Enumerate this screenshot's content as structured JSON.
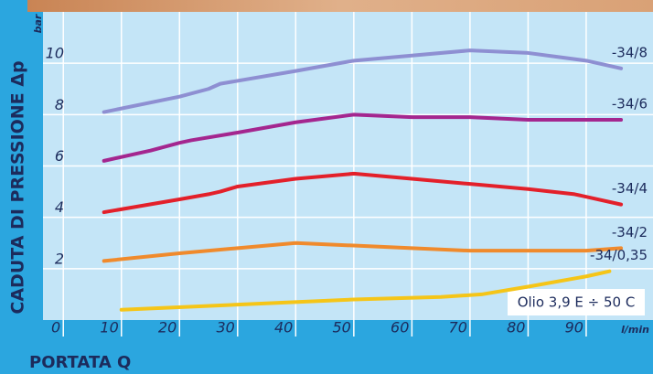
{
  "chart_data": {
    "type": "line",
    "y_label": "CADUTA DI PRESSIONE Δp",
    "y_unit": "bar",
    "x_label": "PORTATA Q",
    "x_unit": "l/min",
    "annotation": "Olio 3,9 E ÷ 50 C",
    "xlim": [
      -3.5,
      101.5
    ],
    "ylim": [
      0,
      12
    ],
    "xticks": [
      0,
      10,
      20,
      30,
      40,
      50,
      60,
      70,
      80,
      90
    ],
    "yticks": [
      2,
      4,
      6,
      8,
      10
    ],
    "grid": true,
    "series": [
      {
        "name": "-34/8",
        "color": "#8e8fd2",
        "x": [
          7,
          20,
          25,
          27,
          40,
          50,
          60,
          70,
          80,
          90,
          96
        ],
        "values": [
          8.1,
          8.7,
          9.0,
          9.2,
          9.7,
          10.1,
          10.3,
          10.5,
          10.4,
          10.1,
          9.8
        ]
      },
      {
        "name": "-34/6",
        "color": "#a4268f",
        "x": [
          7,
          15,
          20,
          22,
          30,
          40,
          50,
          60,
          70,
          80,
          90,
          96
        ],
        "values": [
          6.2,
          6.6,
          6.9,
          7.0,
          7.3,
          7.7,
          8.0,
          7.9,
          7.9,
          7.8,
          7.8,
          7.8
        ]
      },
      {
        "name": "-34/4",
        "color": "#e3202a",
        "x": [
          7,
          20,
          25,
          27,
          30,
          40,
          50,
          60,
          70,
          80,
          88,
          96
        ],
        "values": [
          4.2,
          4.7,
          4.9,
          5.0,
          5.2,
          5.5,
          5.7,
          5.5,
          5.3,
          5.1,
          4.9,
          4.5
        ]
      },
      {
        "name": "-34/2",
        "color": "#f08a2c",
        "x": [
          7,
          20,
          30,
          40,
          50,
          60,
          70,
          80,
          90,
          96
        ],
        "values": [
          2.3,
          2.6,
          2.8,
          3.0,
          2.9,
          2.8,
          2.7,
          2.7,
          2.7,
          2.8
        ]
      },
      {
        "name": "-34/0,35",
        "color": "#f5c518",
        "x": [
          10,
          30,
          50,
          65,
          72,
          80,
          90,
          94
        ],
        "values": [
          0.4,
          0.6,
          0.8,
          0.9,
          1.0,
          1.3,
          1.7,
          1.9
        ]
      }
    ]
  }
}
